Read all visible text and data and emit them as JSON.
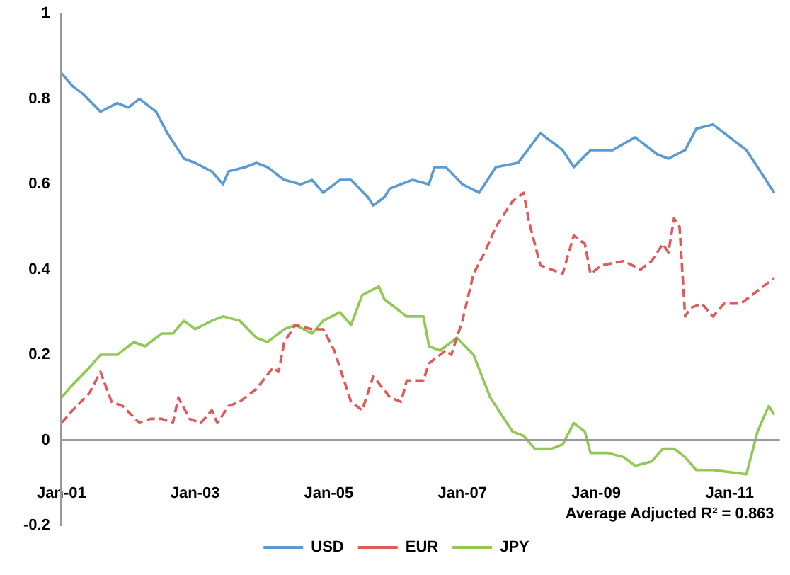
{
  "chart_data": {
    "type": "line",
    "annotations": [
      "Average Adjucted R² = 0.863"
    ],
    "xlim": [
      "2001-01",
      "2011-10"
    ],
    "xticks": [
      {
        "value": "2001-01",
        "label": "Jan-01"
      },
      {
        "value": "2003-01",
        "label": "Jan-03"
      },
      {
        "value": "2005-01",
        "label": "Jan-05"
      },
      {
        "value": "2007-01",
        "label": "Jan-07"
      },
      {
        "value": "2009-01",
        "label": "Jan-09"
      },
      {
        "value": "2011-01",
        "label": "Jan-11"
      }
    ],
    "ylim": [
      -0.2,
      1
    ],
    "yticks": [
      -0.2,
      0,
      0.2,
      0.4,
      0.6,
      0.8,
      1
    ],
    "grid": false,
    "legend": "bottom",
    "marker": "none",
    "ref_lines": [
      {
        "axis": "y",
        "value": 0,
        "color": "#999999",
        "line_style": "solid"
      }
    ],
    "series": [
      {
        "name": "USD",
        "color": "#5b9bd5",
        "line_style": "solid",
        "x": [
          "2001-01",
          "2001-03",
          "2001-05",
          "2001-08",
          "2001-11",
          "2002-01",
          "2002-03",
          "2002-06",
          "2002-08",
          "2002-11",
          "2003-01",
          "2003-04",
          "2003-06",
          "2003-07",
          "2003-10",
          "2003-12",
          "2004-02",
          "2004-05",
          "2004-08",
          "2004-10",
          "2004-12",
          "2005-03",
          "2005-05",
          "2005-08",
          "2005-09",
          "2005-11",
          "2005-12",
          "2006-04",
          "2006-07",
          "2006-08",
          "2006-10",
          "2007-01",
          "2007-04",
          "2007-07",
          "2007-11",
          "2008-03",
          "2008-07",
          "2008-09",
          "2008-12",
          "2009-04",
          "2009-08",
          "2009-12",
          "2010-02",
          "2010-05",
          "2010-07",
          "2010-10",
          "2011-01",
          "2011-04",
          "2011-07",
          "2011-09"
        ],
        "values": [
          0.86,
          0.83,
          0.81,
          0.77,
          0.79,
          0.78,
          0.8,
          0.77,
          0.72,
          0.66,
          0.65,
          0.63,
          0.6,
          0.63,
          0.64,
          0.65,
          0.64,
          0.61,
          0.6,
          0.61,
          0.58,
          0.61,
          0.61,
          0.57,
          0.55,
          0.57,
          0.59,
          0.61,
          0.6,
          0.64,
          0.64,
          0.6,
          0.58,
          0.64,
          0.65,
          0.72,
          0.68,
          0.64,
          0.68,
          0.68,
          0.71,
          0.67,
          0.66,
          0.68,
          0.73,
          0.74,
          0.71,
          0.68,
          0.62,
          0.58
        ]
      },
      {
        "name": "EUR",
        "color": "#e05a5a",
        "line_style": "dashed",
        "x": [
          "2001-01",
          "2001-03",
          "2001-06",
          "2001-08",
          "2001-10",
          "2001-12",
          "2002-03",
          "2002-05",
          "2002-07",
          "2002-09",
          "2002-10",
          "2002-12",
          "2003-02",
          "2003-04",
          "2003-05",
          "2003-07",
          "2003-09",
          "2003-12",
          "2004-03",
          "2004-04",
          "2004-05",
          "2004-07",
          "2004-10",
          "2004-12",
          "2005-02",
          "2005-04",
          "2005-05",
          "2005-07",
          "2005-09",
          "2005-12",
          "2006-02",
          "2006-03",
          "2006-06",
          "2006-07",
          "2006-10",
          "2006-11",
          "2007-01",
          "2007-03",
          "2007-05",
          "2007-07",
          "2007-10",
          "2007-12",
          "2008-01",
          "2008-03",
          "2008-05",
          "2008-07",
          "2008-09",
          "2008-11",
          "2008-12",
          "2009-02",
          "2009-06",
          "2009-09",
          "2009-11",
          "2010-01",
          "2010-02",
          "2010-03",
          "2010-04",
          "2010-05",
          "2010-06",
          "2010-08",
          "2010-10",
          "2010-12",
          "2011-03",
          "2011-06",
          "2011-09"
        ],
        "values": [
          0.04,
          0.07,
          0.11,
          0.16,
          0.09,
          0.08,
          0.04,
          0.05,
          0.05,
          0.04,
          0.1,
          0.05,
          0.04,
          0.07,
          0.04,
          0.08,
          0.09,
          0.12,
          0.17,
          0.16,
          0.23,
          0.27,
          0.26,
          0.26,
          0.21,
          0.13,
          0.09,
          0.07,
          0.15,
          0.1,
          0.09,
          0.14,
          0.14,
          0.18,
          0.21,
          0.2,
          0.28,
          0.39,
          0.44,
          0.5,
          0.56,
          0.58,
          0.51,
          0.41,
          0.4,
          0.39,
          0.48,
          0.46,
          0.39,
          0.41,
          0.42,
          0.4,
          0.42,
          0.46,
          0.44,
          0.52,
          0.5,
          0.29,
          0.31,
          0.32,
          0.29,
          0.32,
          0.32,
          0.35,
          0.38
        ]
      },
      {
        "name": "JPY",
        "color": "#92c955",
        "line_style": "solid",
        "x": [
          "2001-01",
          "2001-03",
          "2001-06",
          "2001-08",
          "2001-11",
          "2002-02",
          "2002-04",
          "2002-07",
          "2002-09",
          "2002-11",
          "2003-01",
          "2003-04",
          "2003-06",
          "2003-09",
          "2003-12",
          "2004-02",
          "2004-05",
          "2004-07",
          "2004-10",
          "2004-12",
          "2005-03",
          "2005-05",
          "2005-07",
          "2005-10",
          "2005-11",
          "2006-03",
          "2006-06",
          "2006-07",
          "2006-09",
          "2006-12",
          "2007-03",
          "2007-06",
          "2007-10",
          "2007-12",
          "2008-02",
          "2008-05",
          "2008-07",
          "2008-09",
          "2008-11",
          "2008-12",
          "2009-03",
          "2009-06",
          "2009-08",
          "2009-11",
          "2010-01",
          "2010-03",
          "2010-05",
          "2010-07",
          "2010-10",
          "2011-04",
          "2011-06",
          "2011-08",
          "2011-09"
        ],
        "values": [
          0.1,
          0.13,
          0.17,
          0.2,
          0.2,
          0.23,
          0.22,
          0.25,
          0.25,
          0.28,
          0.26,
          0.28,
          0.29,
          0.28,
          0.24,
          0.23,
          0.26,
          0.27,
          0.25,
          0.28,
          0.3,
          0.27,
          0.34,
          0.36,
          0.33,
          0.29,
          0.29,
          0.22,
          0.21,
          0.24,
          0.2,
          0.1,
          0.02,
          0.01,
          -0.02,
          -0.02,
          -0.01,
          0.04,
          0.02,
          -0.03,
          -0.03,
          -0.04,
          -0.06,
          -0.05,
          -0.02,
          -0.02,
          -0.04,
          -0.07,
          -0.07,
          -0.08,
          0.02,
          0.08,
          0.06
        ]
      }
    ]
  }
}
